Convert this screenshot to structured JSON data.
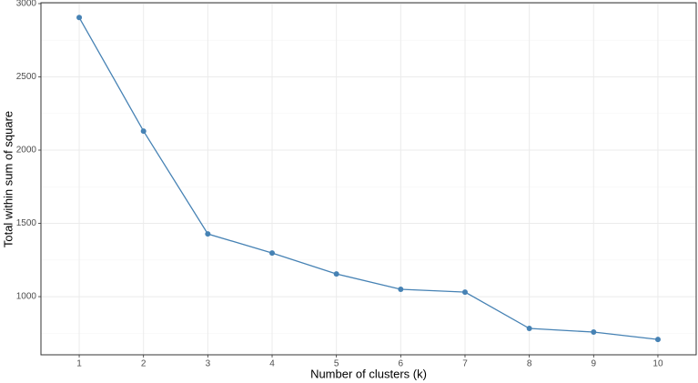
{
  "chart_data": {
    "type": "line",
    "x_label": "Number of clusters (k)",
    "y_label": "Total within sum of square",
    "x": [
      1,
      2,
      3,
      4,
      5,
      6,
      7,
      8,
      9,
      10
    ],
    "series": [
      {
        "color": "#4682b4",
        "values": [
          2905,
          2130,
          1428,
          1298,
          1155,
          1050,
          1031,
          783,
          758,
          708
        ]
      }
    ],
    "xlim": [
      0.405,
      10.595
    ],
    "xticks": [
      1,
      2,
      3,
      4,
      5,
      6,
      7,
      8,
      9,
      10
    ],
    "ylim": [
      603,
      3006
    ],
    "yticks": [
      1000,
      1500,
      2000,
      2500,
      3000
    ],
    "y_minor_ticks": [
      750,
      1250,
      1750,
      2250,
      2750
    ],
    "grid": true
  }
}
